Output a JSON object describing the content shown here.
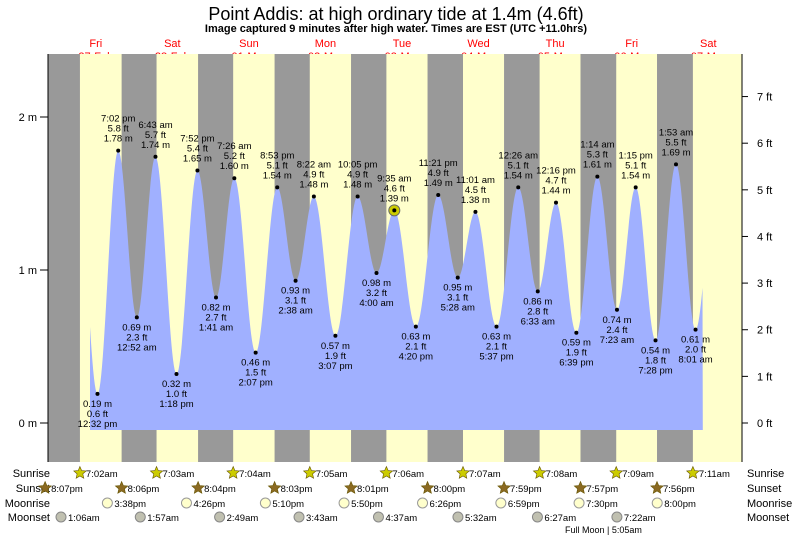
{
  "title": "Point Addis: at high  ordinary tide at 1.4m (4.6ft)",
  "subtitle": "Image captured 9 minutes after high water. Times are EST (UTC +11.0hrs)",
  "colors": {
    "day": "#ffffcc",
    "night": "#999999",
    "water": "#a0b0ff",
    "day_label": "#ff0000",
    "sunrise_star": "#cccc00",
    "sunset_star": "#8b6a22",
    "moonrise": "#ffffcc",
    "moonset": "#c0c0b0",
    "current_marker": "#cccc00"
  },
  "days": [
    {
      "name": "Fri",
      "date": "27-Feb"
    },
    {
      "name": "Sat",
      "date": "28-Feb"
    },
    {
      "name": "Sun",
      "date": "01-Mar"
    },
    {
      "name": "Mon",
      "date": "02-Mar"
    },
    {
      "name": "Tue",
      "date": "03-Mar"
    },
    {
      "name": "Wed",
      "date": "04-Mar"
    },
    {
      "name": "Thu",
      "date": "05-Mar"
    },
    {
      "name": "Fri",
      "date": "06-Mar"
    },
    {
      "name": "Sat",
      "date": "07-Mar"
    }
  ],
  "chart_data": {
    "type": "area",
    "yaxis_left": {
      "ticks": [
        "0 m",
        "1 m",
        "2 m"
      ],
      "values": [
        0,
        1,
        2
      ],
      "unit": "m"
    },
    "yaxis_right": {
      "ticks": [
        "0 ft",
        "1 ft",
        "2 ft",
        "3 ft",
        "4 ft",
        "5 ft",
        "6 ft",
        "7 ft"
      ],
      "values": [
        0,
        1,
        2,
        3,
        4,
        5,
        6,
        7
      ],
      "unit": "ft"
    },
    "tides": [
      {
        "day": 0,
        "time": "12:32 pm",
        "type": "low",
        "m": "0.19 m",
        "ft": "0.6 ft",
        "value": 0.19
      },
      {
        "day": 0,
        "time": "7:02 pm",
        "type": "high",
        "m": "1.78 m",
        "ft": "5.8 ft",
        "value": 1.78
      },
      {
        "day": 1,
        "time": "12:52 am",
        "type": "low",
        "m": "0.69 m",
        "ft": "2.3 ft",
        "value": 0.69
      },
      {
        "day": 1,
        "time": "6:43 am",
        "type": "high",
        "m": "1.74 m",
        "ft": "5.7 ft",
        "value": 1.74
      },
      {
        "day": 1,
        "time": "1:18 pm",
        "type": "low",
        "m": "0.32 m",
        "ft": "1.0 ft",
        "value": 0.32
      },
      {
        "day": 1,
        "time": "7:52 pm",
        "type": "high",
        "m": "1.65 m",
        "ft": "5.4 ft",
        "value": 1.65
      },
      {
        "day": 2,
        "time": "1:41 am",
        "type": "low",
        "m": "0.82 m",
        "ft": "2.7 ft",
        "value": 0.82
      },
      {
        "day": 2,
        "time": "7:26 am",
        "type": "high",
        "m": "1.60 m",
        "ft": "5.2 ft",
        "value": 1.6
      },
      {
        "day": 2,
        "time": "2:07 pm",
        "type": "low",
        "m": "0.46 m",
        "ft": "1.5 ft",
        "value": 0.46
      },
      {
        "day": 2,
        "time": "8:53 pm",
        "type": "high",
        "m": "1.54 m",
        "ft": "5.1 ft",
        "value": 1.54
      },
      {
        "day": 3,
        "time": "2:38 am",
        "type": "low",
        "m": "0.93 m",
        "ft": "3.1 ft",
        "value": 0.93
      },
      {
        "day": 3,
        "time": "8:22 am",
        "type": "high",
        "m": "1.48 m",
        "ft": "4.9 ft",
        "value": 1.48
      },
      {
        "day": 3,
        "time": "3:07 pm",
        "type": "low",
        "m": "0.57 m",
        "ft": "1.9 ft",
        "value": 0.57
      },
      {
        "day": 3,
        "time": "10:05 pm",
        "type": "high",
        "m": "1.48 m",
        "ft": "4.9 ft",
        "value": 1.48
      },
      {
        "day": 4,
        "time": "4:00 am",
        "type": "low",
        "m": "0.98 m",
        "ft": "3.2 ft",
        "value": 0.98
      },
      {
        "day": 4,
        "time": "9:35 am",
        "type": "high",
        "m": "1.39 m",
        "ft": "4.6 ft",
        "value": 1.39,
        "current": true
      },
      {
        "day": 4,
        "time": "4:20 pm",
        "type": "low",
        "m": "0.63 m",
        "ft": "2.1 ft",
        "value": 0.63
      },
      {
        "day": 4,
        "time": "11:21 pm",
        "type": "high",
        "m": "1.49 m",
        "ft": "4.9 ft",
        "value": 1.49
      },
      {
        "day": 5,
        "time": "5:28 am",
        "type": "low",
        "m": "0.95 m",
        "ft": "3.1 ft",
        "value": 0.95
      },
      {
        "day": 5,
        "time": "11:01 am",
        "type": "high",
        "m": "1.38 m",
        "ft": "4.5 ft",
        "value": 1.38
      },
      {
        "day": 5,
        "time": "5:37 pm",
        "type": "low",
        "m": "0.63 m",
        "ft": "2.1 ft",
        "value": 0.63
      },
      {
        "day": 6,
        "time": "12:26 am",
        "type": "high",
        "m": "1.54 m",
        "ft": "5.1 ft",
        "value": 1.54
      },
      {
        "day": 6,
        "time": "6:33 am",
        "type": "low",
        "m": "0.86 m",
        "ft": "2.8 ft",
        "value": 0.86
      },
      {
        "day": 6,
        "time": "12:16 pm",
        "type": "high",
        "m": "1.44 m",
        "ft": "4.7 ft",
        "value": 1.44
      },
      {
        "day": 6,
        "time": "6:39 pm",
        "type": "low",
        "m": "0.59 m",
        "ft": "1.9 ft",
        "value": 0.59
      },
      {
        "day": 7,
        "time": "1:14 am",
        "type": "high",
        "m": "1.61 m",
        "ft": "5.3 ft",
        "value": 1.61
      },
      {
        "day": 7,
        "time": "7:23 am",
        "type": "low",
        "m": "0.74 m",
        "ft": "2.4 ft",
        "value": 0.74
      },
      {
        "day": 7,
        "time": "1:15 pm",
        "type": "high",
        "m": "1.54 m",
        "ft": "5.1 ft",
        "value": 1.54
      },
      {
        "day": 7,
        "time": "7:28 pm",
        "type": "low",
        "m": "0.54 m",
        "ft": "1.8 ft",
        "value": 0.54
      },
      {
        "day": 8,
        "time": "1:53 am",
        "type": "high",
        "m": "1.69 m",
        "ft": "5.5 ft",
        "value": 1.69
      },
      {
        "day": 8,
        "time": "8:01 am",
        "type": "low",
        "m": "0.61 m",
        "ft": "2.0 ft",
        "value": 0.61
      }
    ]
  },
  "astro": {
    "labels": {
      "sunrise": "Sunrise",
      "sunset": "Sunset",
      "moonrise": "Moonrise",
      "moonset": "Moonset"
    },
    "sunrise": [
      "7:02am",
      "7:03am",
      "7:04am",
      "7:05am",
      "7:06am",
      "7:07am",
      "7:08am",
      "7:09am",
      "7:11am"
    ],
    "sunset": [
      "8:07pm",
      "8:06pm",
      "8:04pm",
      "8:03pm",
      "8:01pm",
      "8:00pm",
      "7:59pm",
      "7:57pm",
      "7:56pm"
    ],
    "moonrise": [
      "3:38pm",
      "4:26pm",
      "5:10pm",
      "5:50pm",
      "6:26pm",
      "6:59pm",
      "7:30pm",
      "8:00pm"
    ],
    "moonset": [
      "1:06am",
      "1:57am",
      "2:49am",
      "3:43am",
      "4:37am",
      "5:32am",
      "6:27am",
      "7:22am"
    ],
    "full_moon": "Full Moon | 5:05am"
  }
}
